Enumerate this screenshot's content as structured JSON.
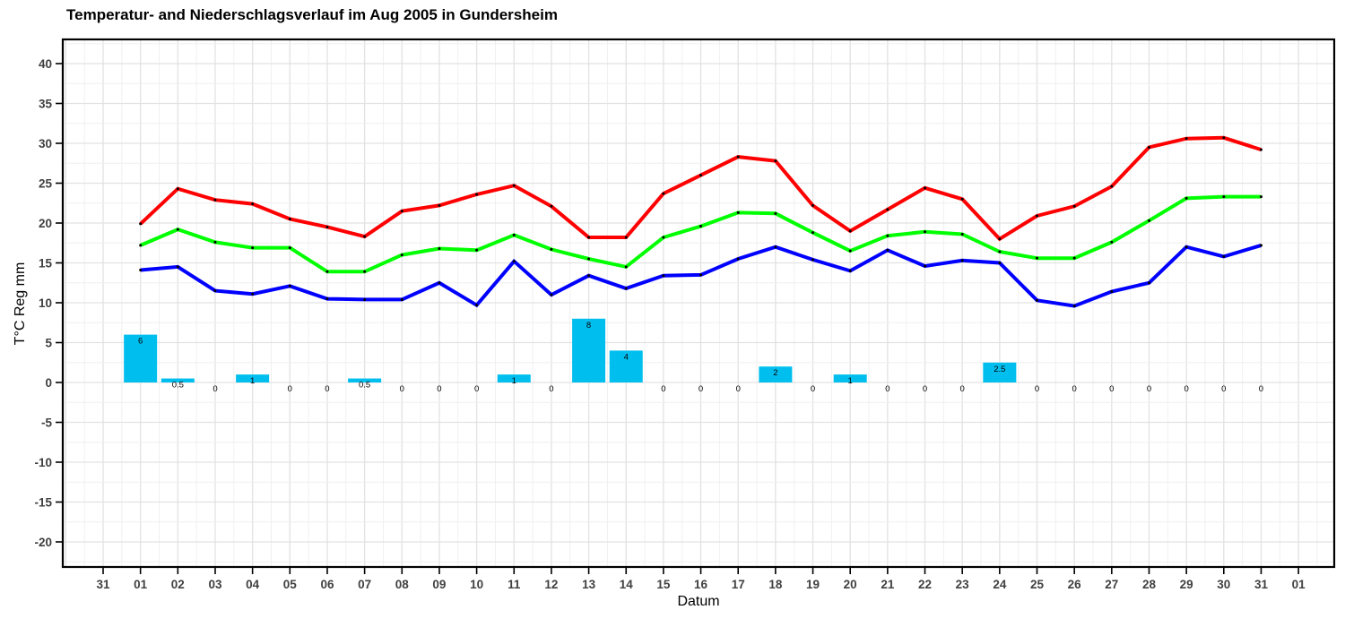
{
  "title": "Temperatur- and Niederschlagsverlauf im Aug 2005 in Gundersheim",
  "chart_data": {
    "type": "line+bar",
    "title": "Temperatur- and Niederschlagsverlauf im Aug 2005 in Gundersheim",
    "xlabel": "Datum",
    "ylabel": "T°C Reg mm",
    "ylim": [
      -23,
      43
    ],
    "ytick_values": [
      -20,
      -15,
      -10,
      -5,
      0,
      5,
      10,
      15,
      20,
      25,
      30,
      35,
      40
    ],
    "ytick_labels": [
      "-20",
      "-15",
      "-10",
      "-5",
      "0",
      "5",
      "10",
      "15",
      "20",
      "25",
      "30",
      "35",
      "40"
    ],
    "xtick_labels": [
      "31",
      "01",
      "02",
      "03",
      "04",
      "05",
      "06",
      "07",
      "08",
      "09",
      "10",
      "11",
      "12",
      "13",
      "14",
      "15",
      "16",
      "17",
      "18",
      "19",
      "20",
      "21",
      "22",
      "23",
      "24",
      "25",
      "26",
      "27",
      "28",
      "29",
      "30",
      "31",
      "01"
    ],
    "grid": "on",
    "legend": "none",
    "days": [
      "01",
      "02",
      "03",
      "04",
      "05",
      "06",
      "07",
      "08",
      "09",
      "10",
      "11",
      "12",
      "13",
      "14",
      "15",
      "16",
      "17",
      "18",
      "19",
      "20",
      "21",
      "22",
      "23",
      "24",
      "25",
      "26",
      "27",
      "28",
      "29",
      "30",
      "31"
    ],
    "series": [
      {
        "name": "max-temperature",
        "color": "#ff0000",
        "values": [
          19.9,
          24.3,
          22.9,
          22.4,
          20.5,
          19.5,
          18.3,
          21.5,
          22.2,
          23.6,
          24.7,
          22.1,
          18.2,
          18.2,
          23.7,
          26.0,
          28.3,
          27.8,
          22.2,
          19.0,
          21.7,
          24.4,
          23.0,
          18.0,
          20.9,
          22.1,
          24.6,
          29.5,
          30.6,
          30.7,
          29.2
        ]
      },
      {
        "name": "mean-temperature",
        "color": "#00ff00",
        "values": [
          17.2,
          19.2,
          17.6,
          16.9,
          16.9,
          13.9,
          13.9,
          16.0,
          16.8,
          16.6,
          18.5,
          16.7,
          15.5,
          14.5,
          18.2,
          19.6,
          21.3,
          21.2,
          18.8,
          16.5,
          18.4,
          18.9,
          18.6,
          16.4,
          15.6,
          15.6,
          17.6,
          20.3,
          23.1,
          23.3,
          23.3
        ]
      },
      {
        "name": "min-temperature",
        "color": "#0000ff",
        "values": [
          14.1,
          14.5,
          11.5,
          11.1,
          12.1,
          10.5,
          10.4,
          10.4,
          12.5,
          9.7,
          15.2,
          11.0,
          13.4,
          11.8,
          13.4,
          13.5,
          15.5,
          17.0,
          15.4,
          14.0,
          16.6,
          14.6,
          15.3,
          15.0,
          10.3,
          9.6,
          11.4,
          12.5,
          17.0,
          15.8,
          17.2
        ]
      }
    ],
    "bars": {
      "name": "precipitation-mm",
      "color": "#00bfef",
      "values": [
        6,
        0.5,
        0,
        1,
        0,
        0,
        0.5,
        0,
        0,
        0,
        1,
        0,
        8,
        4,
        0,
        0,
        0,
        2,
        0,
        1,
        0,
        0,
        0,
        2.5,
        0,
        0,
        0,
        0,
        0,
        0,
        0
      ],
      "labels": [
        "6",
        "0.5",
        "0",
        "1",
        "0",
        "0",
        "0.5",
        "0",
        "0",
        "0",
        "1",
        "0",
        "8",
        "4",
        "0",
        "0",
        "0",
        "2",
        "0",
        "1",
        "0",
        "0",
        "0",
        "2.5",
        "0",
        "0",
        "0",
        "0",
        "0",
        "0",
        "0"
      ]
    },
    "point_color": "#000000"
  }
}
